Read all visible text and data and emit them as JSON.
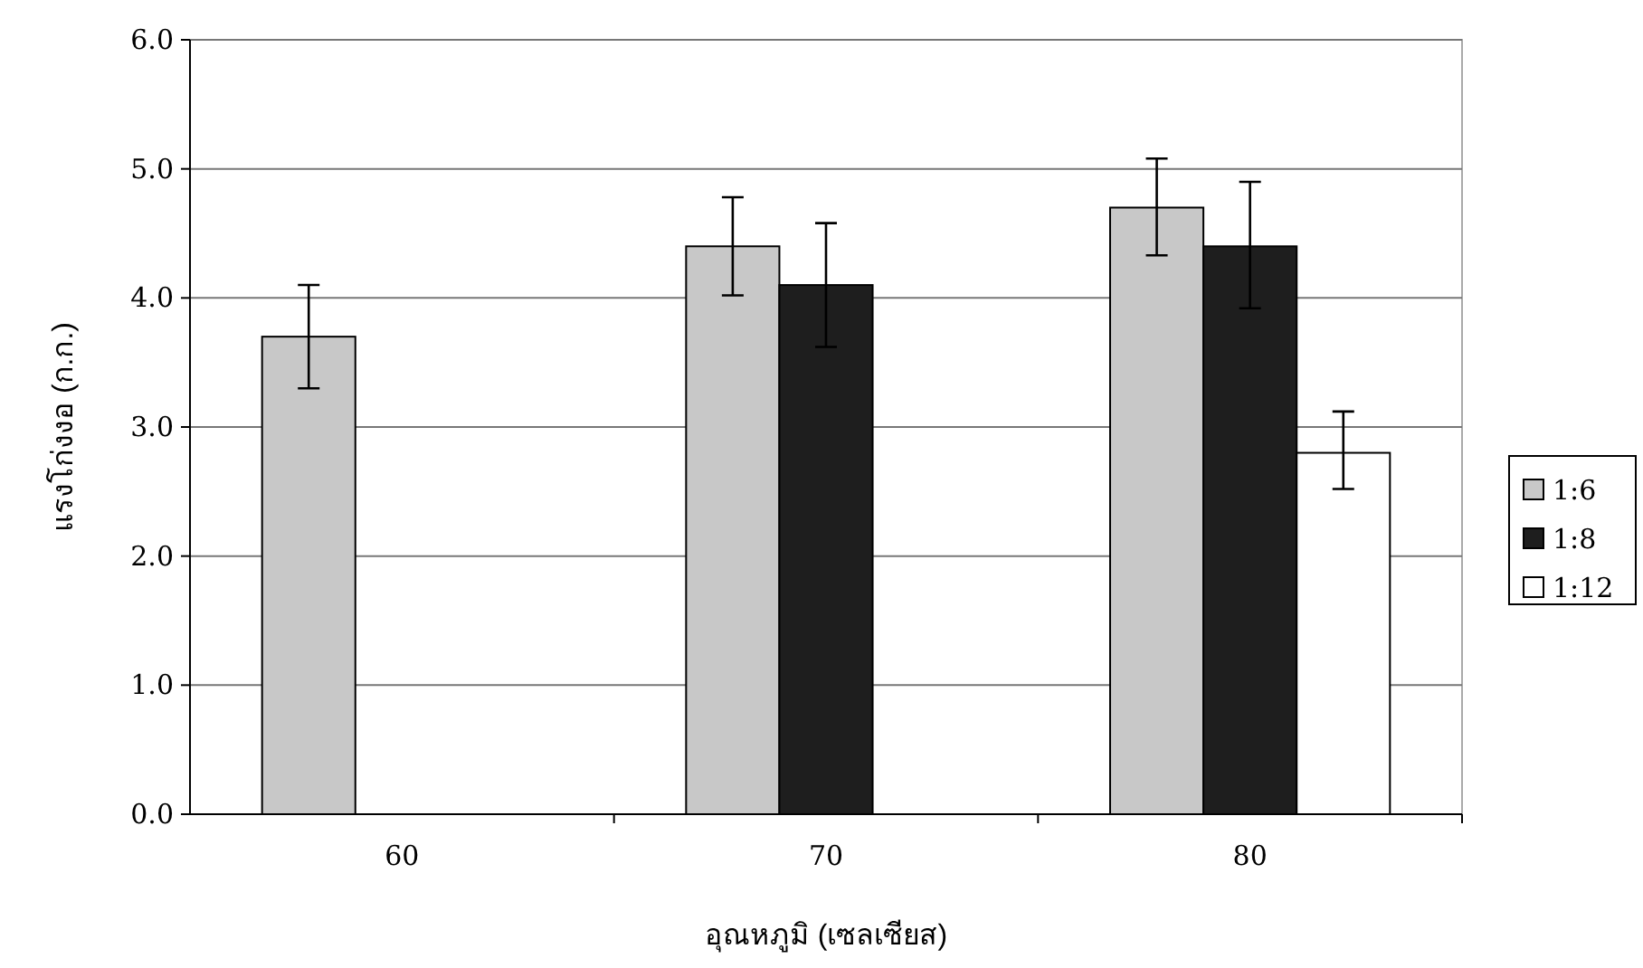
{
  "chart_data": {
    "type": "bar",
    "xlabel": "อุณหภูมิ (เซลเซียส)",
    "ylabel": "แรงโก่งงอ (ก.ก.)",
    "categories": [
      "60",
      "70",
      "80"
    ],
    "series": [
      {
        "name": "1:6",
        "color": "#c8c8c8",
        "values": [
          3.7,
          4.4,
          4.7
        ],
        "errors": [
          [
            3.3,
            4.1
          ],
          [
            4.02,
            4.78
          ],
          [
            4.33,
            5.08
          ]
        ]
      },
      {
        "name": "1:8",
        "color": "#1e1e1e",
        "values": [
          null,
          4.1,
          4.4
        ],
        "errors": [
          null,
          [
            3.62,
            4.58
          ],
          [
            3.92,
            4.9
          ]
        ]
      },
      {
        "name": "1:12",
        "color": "#ffffff",
        "values": [
          null,
          null,
          2.8
        ],
        "errors": [
          null,
          null,
          [
            2.52,
            3.12
          ]
        ]
      }
    ],
    "ylim": [
      0,
      6
    ],
    "yticks": [
      {
        "value": 0,
        "label": "0.0"
      },
      {
        "value": 1,
        "label": "1.0"
      },
      {
        "value": 2,
        "label": "2.0"
      },
      {
        "value": 3,
        "label": "3.0"
      },
      {
        "value": 4,
        "label": "4.0"
      },
      {
        "value": 5,
        "label": "5.0"
      },
      {
        "value": 6,
        "label": "6.0"
      }
    ],
    "grid": "y",
    "legend": "right"
  }
}
